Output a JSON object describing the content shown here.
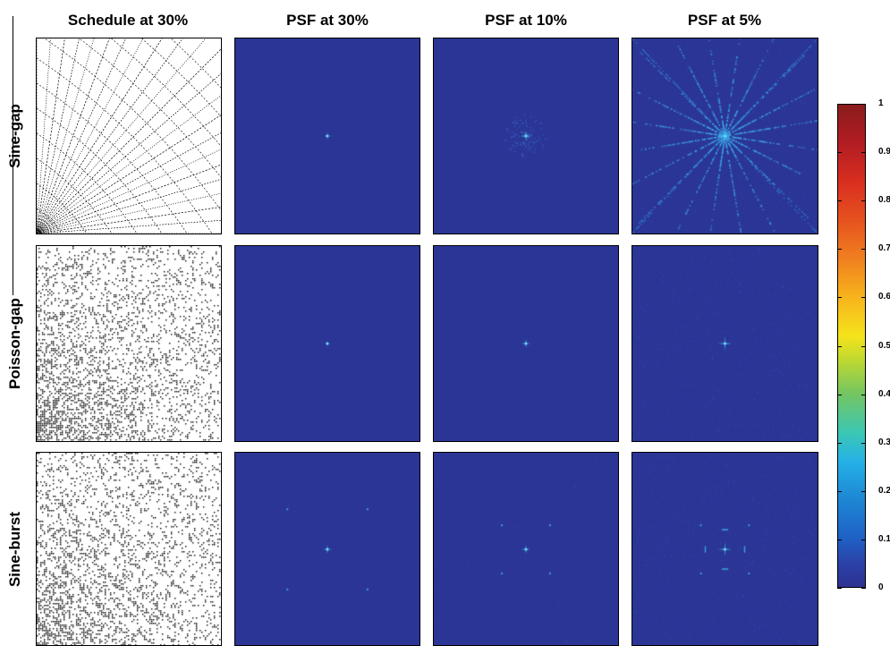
{
  "columns": [
    "Schedule at 30%",
    "PSF at 30%",
    "PSF at 10%",
    "PSF at 5%"
  ],
  "rows": [
    "Sine-gap",
    "Poisson-gap",
    "Sine-burst"
  ],
  "colorbar": {
    "ticks": [
      "1",
      "0.9",
      "0.8",
      "0.7",
      "0.6",
      "0.5",
      "0.4",
      "0.3",
      "0.2",
      "0.1",
      "0"
    ],
    "colors": [
      "#2e3191",
      "#1d86d4",
      "#74c562",
      "#f5e31c",
      "#f0801f",
      "#8a1c1c"
    ]
  },
  "psf_background": "#2b3595",
  "psf_peak_color": "#45c6ee"
}
